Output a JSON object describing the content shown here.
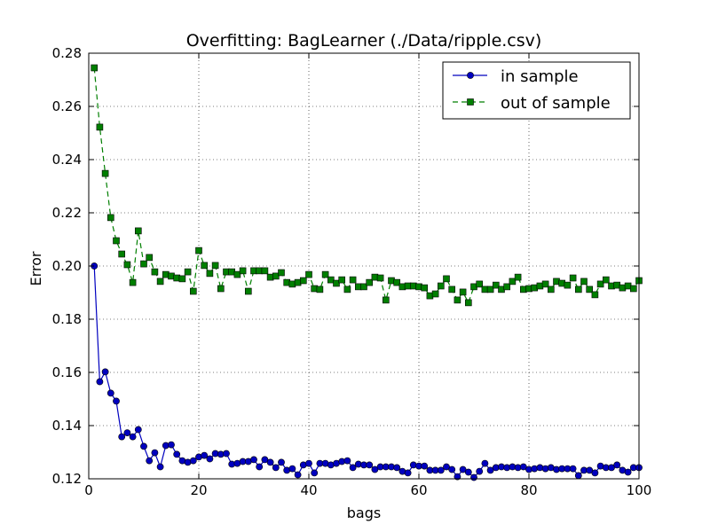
{
  "chart_data": {
    "type": "line",
    "title": "Overfitting: BagLearner (./Data/ripple.csv)",
    "xlabel": "bags",
    "ylabel": "Error",
    "xlim": [
      0,
      100
    ],
    "ylim": [
      0.12,
      0.28
    ],
    "x_ticks": [
      0,
      20,
      40,
      60,
      80,
      100
    ],
    "y_ticks": [
      0.12,
      0.14,
      0.16,
      0.18,
      0.2,
      0.22,
      0.24,
      0.26,
      0.28
    ],
    "grid": true,
    "legend_position": "top-right",
    "x": [
      1,
      2,
      3,
      4,
      5,
      6,
      7,
      8,
      9,
      10,
      11,
      12,
      13,
      14,
      15,
      16,
      17,
      18,
      19,
      20,
      21,
      22,
      23,
      24,
      25,
      26,
      27,
      28,
      29,
      30,
      31,
      32,
      33,
      34,
      35,
      36,
      37,
      38,
      39,
      40,
      41,
      42,
      43,
      44,
      45,
      46,
      47,
      48,
      49,
      50,
      51,
      52,
      53,
      54,
      55,
      56,
      57,
      58,
      59,
      60,
      61,
      62,
      63,
      64,
      65,
      66,
      67,
      68,
      69,
      70,
      71,
      72,
      73,
      74,
      75,
      76,
      77,
      78,
      79,
      80,
      81,
      82,
      83,
      84,
      85,
      86,
      87,
      88,
      89,
      90,
      91,
      92,
      93,
      94,
      95,
      96,
      97,
      98,
      99,
      100
    ],
    "series": [
      {
        "name": "in sample",
        "color": "#0000bf",
        "marker": "circle",
        "line_style": "solid",
        "values": [
          0.2,
          0.1565,
          0.1602,
          0.1522,
          0.1492,
          0.1358,
          0.1373,
          0.1358,
          0.1385,
          0.1322,
          0.1268,
          0.1298,
          0.1245,
          0.1325,
          0.1328,
          0.1292,
          0.1268,
          0.1262,
          0.1268,
          0.1282,
          0.1288,
          0.1275,
          0.1295,
          0.1292,
          0.1295,
          0.1255,
          0.1258,
          0.1265,
          0.1265,
          0.1272,
          0.1245,
          0.1272,
          0.1262,
          0.1242,
          0.1262,
          0.1232,
          0.1238,
          0.1215,
          0.1252,
          0.1258,
          0.1222,
          0.1258,
          0.1258,
          0.1252,
          0.1258,
          0.1265,
          0.1268,
          0.1242,
          0.1255,
          0.1252,
          0.1252,
          0.1235,
          0.1245,
          0.1245,
          0.1245,
          0.1242,
          0.1228,
          0.1222,
          0.1252,
          0.1248,
          0.1248,
          0.1232,
          0.1232,
          0.1232,
          0.1245,
          0.1235,
          0.1208,
          0.1235,
          0.1225,
          0.1205,
          0.1228,
          0.1258,
          0.1232,
          0.1242,
          0.1245,
          0.1242,
          0.1245,
          0.1242,
          0.1245,
          0.1235,
          0.1238,
          0.1242,
          0.1238,
          0.1242,
          0.1235,
          0.1238,
          0.1238,
          0.1238,
          0.1212,
          0.1232,
          0.1232,
          0.1222,
          0.1248,
          0.1242,
          0.1242,
          0.1252,
          0.1232,
          0.1225,
          0.1242,
          0.1242
        ]
      },
      {
        "name": "out of sample",
        "color": "#007f00",
        "marker": "square",
        "line_style": "dashed",
        "values": [
          0.2745,
          0.2522,
          0.2348,
          0.2182,
          0.2095,
          0.2045,
          0.2005,
          0.1938,
          0.2132,
          0.2008,
          0.2032,
          0.1978,
          0.1942,
          0.1968,
          0.1962,
          0.1955,
          0.1952,
          0.1978,
          0.1905,
          0.2058,
          0.2002,
          0.1972,
          0.2002,
          0.1915,
          0.1978,
          0.1978,
          0.1968,
          0.1982,
          0.1905,
          0.1982,
          0.1982,
          0.1982,
          0.1958,
          0.1962,
          0.1975,
          0.1938,
          0.1932,
          0.1938,
          0.1945,
          0.1968,
          0.1915,
          0.1912,
          0.1968,
          0.1948,
          0.1935,
          0.1948,
          0.1912,
          0.1948,
          0.1922,
          0.1922,
          0.1938,
          0.1958,
          0.1955,
          0.1872,
          0.1945,
          0.1938,
          0.1922,
          0.1925,
          0.1925,
          0.1922,
          0.1918,
          0.1888,
          0.1895,
          0.1925,
          0.1952,
          0.1912,
          0.1872,
          0.1902,
          0.1862,
          0.1922,
          0.1932,
          0.1912,
          0.1912,
          0.1928,
          0.1912,
          0.1922,
          0.1942,
          0.1958,
          0.1912,
          0.1915,
          0.1918,
          0.1925,
          0.1932,
          0.1912,
          0.1942,
          0.1935,
          0.1928,
          0.1955,
          0.1912,
          0.1942,
          0.1912,
          0.1892,
          0.1932,
          0.1948,
          0.1925,
          0.1928,
          0.1918,
          0.1925,
          0.1915,
          0.1945
        ]
      }
    ]
  }
}
